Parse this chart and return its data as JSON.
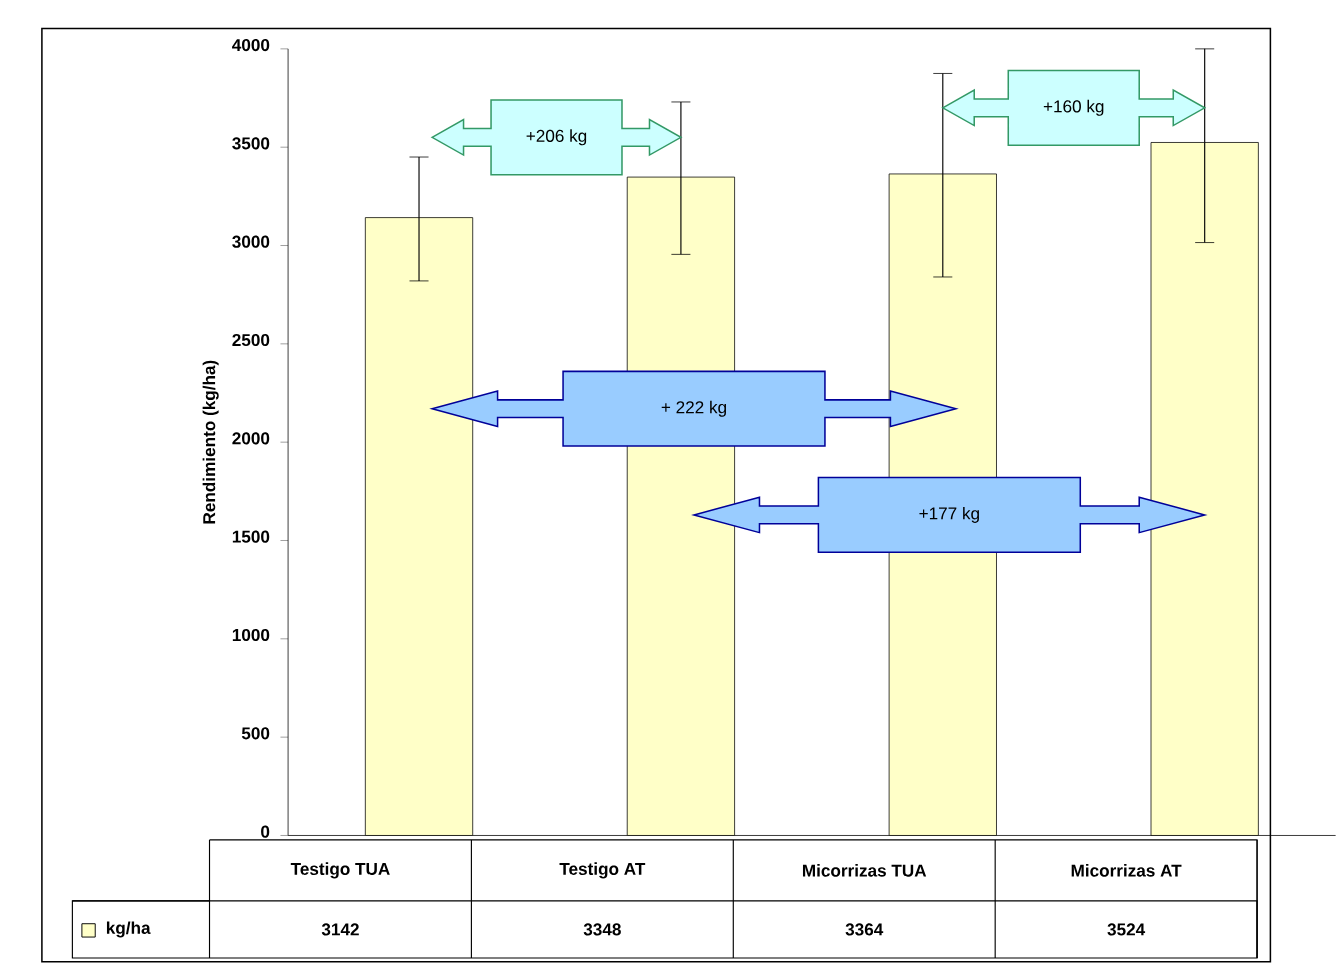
{
  "chart_data": {
    "type": "bar",
    "ylabel": "Rendimiento (kg/ha)",
    "categories": [
      "Testigo TUA",
      "Testigo AT",
      "Micorrizas TUA",
      "Micorrizas AT"
    ],
    "series": [
      {
        "name": "kg/ha",
        "color": "#ffffc8",
        "values": [
          3142,
          3348,
          3364,
          3524
        ],
        "errors": [
          [
            2820,
            3450
          ],
          [
            2955,
            3730
          ],
          [
            2840,
            3875
          ],
          [
            3015,
            4000
          ]
        ]
      }
    ],
    "data_labels": true,
    "legend": "bottom",
    "ylim": [
      0,
      4000
    ],
    "yticks": [
      0,
      500,
      1000,
      1500,
      2000,
      2500,
      3000,
      3500,
      4000
    ],
    "annotations": [
      "+206 kg",
      "+160 kg",
      "+ 222 kg",
      "+177 kg"
    ]
  }
}
